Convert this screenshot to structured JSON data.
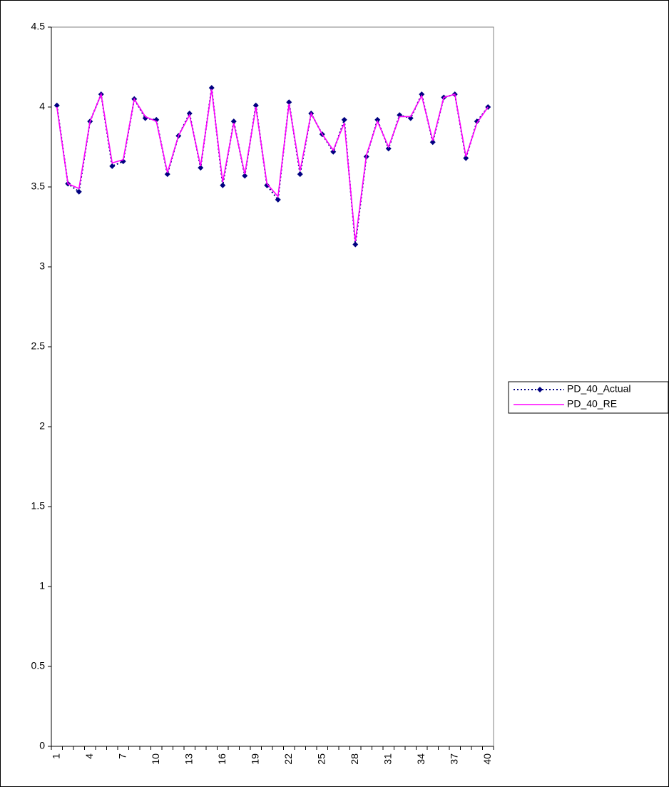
{
  "chart_data": {
    "type": "line",
    "categories": [
      "1",
      null,
      null,
      "4",
      null,
      null,
      "7",
      null,
      null,
      "10",
      null,
      null,
      "13",
      null,
      null,
      "16",
      null,
      null,
      "19",
      null,
      null,
      "22",
      null,
      null,
      "25",
      null,
      null,
      "28",
      null,
      null,
      "31",
      null,
      null,
      "34",
      null,
      null,
      "37",
      null,
      null,
      "40"
    ],
    "series": [
      {
        "name": "PD_40_Actual",
        "color": "#000080",
        "style": "dotted",
        "marker": "diamond",
        "values": [
          4.01,
          3.52,
          3.47,
          3.91,
          4.08,
          3.63,
          3.66,
          4.05,
          3.93,
          3.92,
          3.58,
          3.82,
          3.96,
          3.62,
          4.12,
          3.51,
          3.91,
          3.57,
          4.01,
          3.51,
          3.42,
          4.03,
          3.58,
          3.96,
          3.83,
          3.72,
          3.92,
          3.14,
          3.69,
          3.92,
          3.74,
          3.95,
          3.93,
          4.08,
          3.78,
          4.06,
          4.08,
          3.68,
          3.91,
          4.0
        ]
      },
      {
        "name": "PD_40_RE",
        "color": "#ff00ff",
        "style": "solid",
        "marker": null,
        "values": [
          4.0,
          3.52,
          3.49,
          3.91,
          4.08,
          3.65,
          3.67,
          4.05,
          3.94,
          3.91,
          3.59,
          3.82,
          3.95,
          3.63,
          4.11,
          3.53,
          3.9,
          3.58,
          4.0,
          3.52,
          3.44,
          4.02,
          3.6,
          3.96,
          3.83,
          3.73,
          3.9,
          3.16,
          3.7,
          3.91,
          3.75,
          3.94,
          3.94,
          4.07,
          3.79,
          4.06,
          4.08,
          3.69,
          3.9,
          4.0
        ]
      }
    ],
    "ylim": [
      0,
      4.5
    ],
    "yticks": [
      0,
      0.5,
      1,
      1.5,
      2,
      2.5,
      3,
      3.5,
      4,
      4.5
    ],
    "grid": false,
    "legend": "right"
  }
}
